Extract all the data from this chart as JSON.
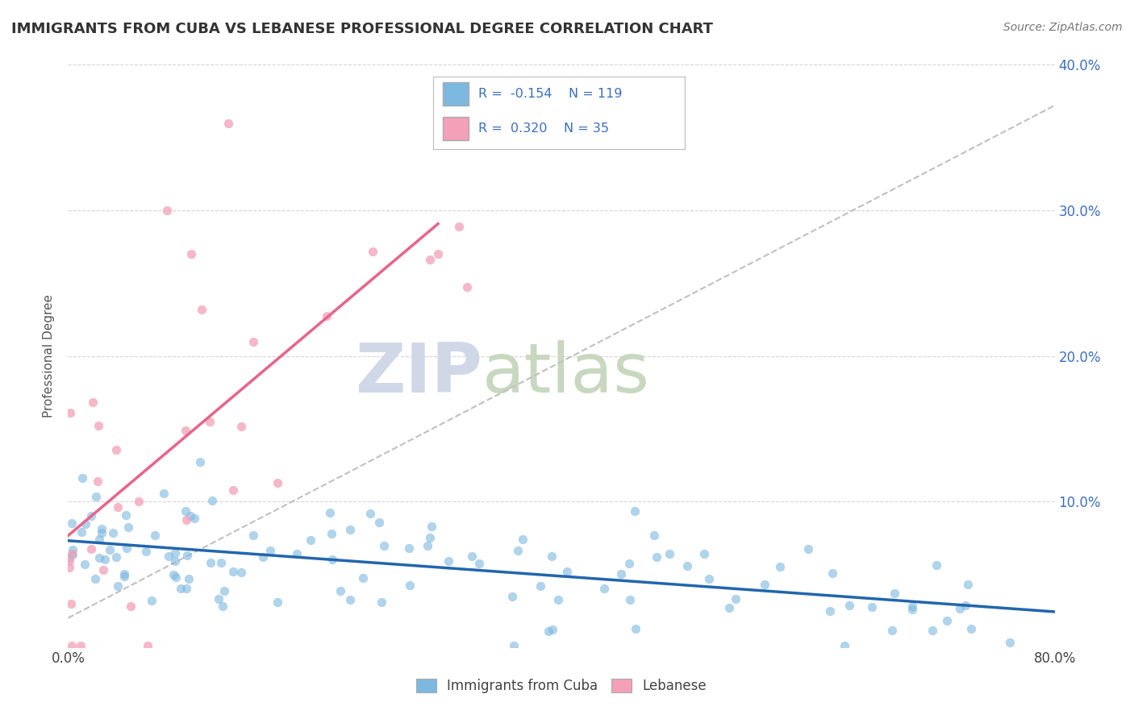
{
  "title": "IMMIGRANTS FROM CUBA VS LEBANESE PROFESSIONAL DEGREE CORRELATION CHART",
  "source_text": "Source: ZipAtlas.com",
  "ylabel": "Professional Degree",
  "legend_label1": "Immigrants from Cuba",
  "legend_label2": "Lebanese",
  "R1": -0.154,
  "N1": 119,
  "R2": 0.32,
  "N2": 35,
  "xlim": [
    0.0,
    0.8
  ],
  "ylim": [
    0.0,
    0.4
  ],
  "x_ticks": [
    0.0,
    0.1,
    0.2,
    0.3,
    0.4,
    0.5,
    0.6,
    0.7,
    0.8
  ],
  "y_ticks": [
    0.0,
    0.1,
    0.2,
    0.3,
    0.4
  ],
  "y_tick_labels_right": [
    "",
    "10.0%",
    "20.0%",
    "30.0%",
    "40.0%"
  ],
  "color_cuba": "#7cb8e0",
  "color_lebanese": "#f4a0b8",
  "color_trend_cuba": "#2166ac",
  "color_trend_lebanese": "#e8648a",
  "color_trend_dashed": "#c0c0c0",
  "watermark_zip": "ZIP",
  "watermark_atlas": "atlas",
  "watermark_color_zip": "#d0d8e8",
  "watermark_color_atlas": "#c8d8c0",
  "background_color": "#ffffff",
  "title_fontsize": 13,
  "seed": 7
}
